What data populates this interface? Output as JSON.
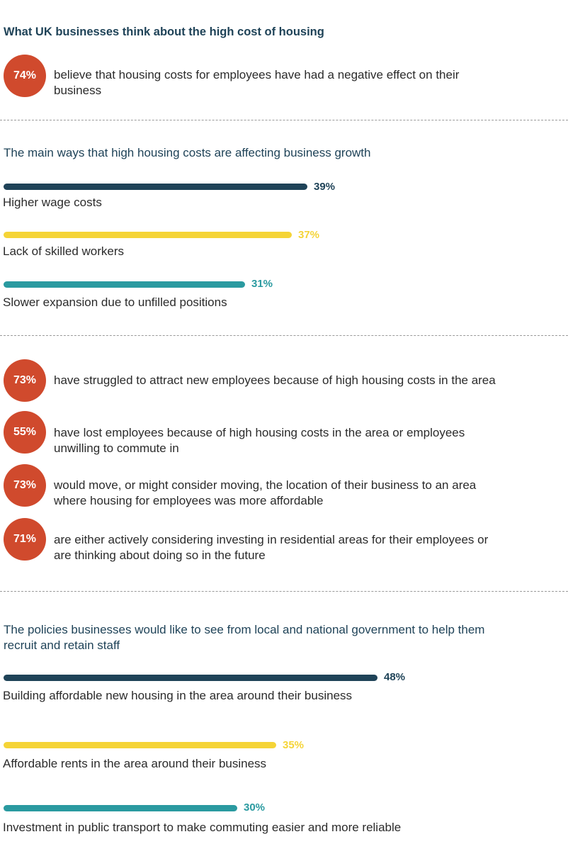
{
  "header": {
    "title": "What UK businesses think about the high cost of housing"
  },
  "intro_stat": {
    "value": "74%",
    "text": "believe that housing costs for employees have had a negative effect on their business"
  },
  "section_growth": {
    "subtitle": "The main ways that high housing costs are affecting business growth"
  },
  "stats": [
    {
      "value": "73%",
      "text": "have struggled to attract new employees because of high housing costs in the area"
    },
    {
      "value": "55%",
      "text": "have lost employees because of high housing costs in the area or employees unwilling to commute in"
    },
    {
      "value": "73%",
      "text": "would move, or might consider moving, the location of their business to an area where housing for employees was more affordable"
    },
    {
      "value": "71%",
      "text": "are either actively considering investing in residential areas for their employees or are thinking about doing so in the future"
    }
  ],
  "section_policies": {
    "subtitle": "The policies businesses would like to see from local and national government to help them recruit and retain staff"
  },
  "colors": {
    "navy": "#1f4358",
    "yellow": "#f5d437",
    "teal": "#2a9aa0",
    "orange": "#d04a2d"
  },
  "chart_data": [
    {
      "type": "bar",
      "orientation": "horizontal",
      "title": "The main ways that high housing costs are affecting business growth",
      "categories": [
        "Higher wage costs",
        "Lack of skilled workers",
        "Slower expansion due to unfilled positions"
      ],
      "values": [
        39,
        37,
        31
      ],
      "value_labels": [
        "39%",
        "37%",
        "31%"
      ],
      "colors": [
        "#1f4358",
        "#f5d437",
        "#2a9aa0"
      ],
      "xlim": [
        0,
        100
      ]
    },
    {
      "type": "bar",
      "orientation": "horizontal",
      "title": "The policies businesses would like to see from local and national government to help them recruit and retain staff",
      "categories": [
        "Building affordable new housing in the area around their business",
        "Affordable rents in the area around their business",
        "Investment in public transport to make commuting easier and more reliable"
      ],
      "values": [
        48,
        35,
        30
      ],
      "value_labels": [
        "48%",
        "35%",
        "30%"
      ],
      "colors": [
        "#1f4358",
        "#f5d437",
        "#2a9aa0"
      ],
      "xlim": [
        0,
        100
      ]
    }
  ]
}
